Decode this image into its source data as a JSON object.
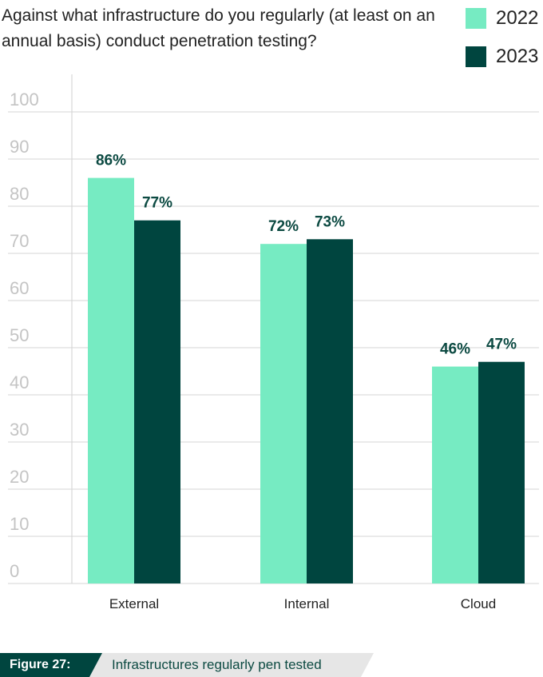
{
  "chart_data": {
    "type": "bar",
    "question": "Against what infrastructure do you regularly (at least on an annual basis) conduct penetration testing?",
    "categories": [
      "External",
      "Internal",
      "Cloud"
    ],
    "series": [
      {
        "name": "2022",
        "values": [
          86,
          72,
          46
        ],
        "labels": [
          "86%",
          "72%",
          "46%"
        ],
        "color": "#76ebc2"
      },
      {
        "name": "2023",
        "values": [
          77,
          73,
          47
        ],
        "labels": [
          "77%",
          "73%",
          "47%"
        ],
        "color": "#00453f"
      }
    ],
    "yticks": [
      0,
      10,
      20,
      30,
      40,
      50,
      60,
      70,
      80,
      90,
      100
    ],
    "ylim": [
      0,
      100
    ],
    "grid": true,
    "legend_position": "top-right"
  },
  "figure": {
    "label": "Figure 27:",
    "caption": "Infrastructures regularly pen tested",
    "label_bg": "#00453f",
    "caption_bg": "#e6e6e6"
  }
}
